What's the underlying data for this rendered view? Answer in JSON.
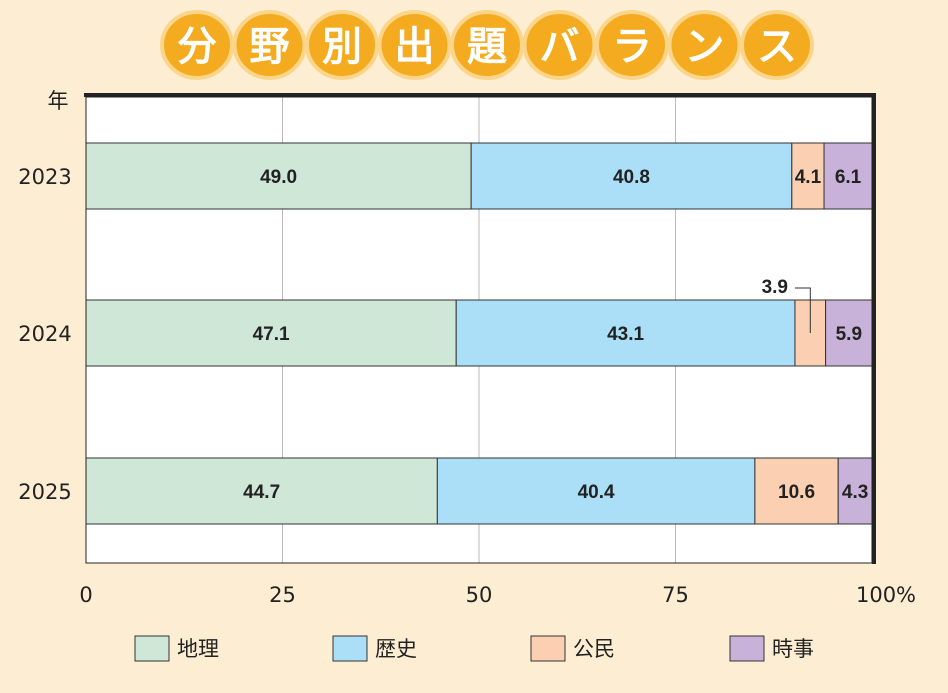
{
  "chart_data": {
    "type": "bar",
    "orientation": "horizontal-stacked",
    "title": "分野別出題バランス",
    "ylabel": "年",
    "xlabel": "",
    "categories": [
      "2023",
      "2024",
      "2025"
    ],
    "series": [
      {
        "name": "地理",
        "color": "#cfe7d6",
        "values": [
          49.0,
          47.1,
          44.7
        ],
        "labels": [
          "49.0",
          "47.1",
          "44.7"
        ]
      },
      {
        "name": "歴史",
        "color": "#aadff7",
        "values": [
          40.8,
          43.1,
          40.4
        ],
        "labels": [
          "40.8",
          "43.1",
          "40.4"
        ]
      },
      {
        "name": "公民",
        "color": "#fbd0b2",
        "values": [
          4.1,
          3.9,
          10.6
        ],
        "labels": [
          "4.1",
          "3.9",
          "10.6"
        ]
      },
      {
        "name": "時事",
        "color": "#c9b2d9",
        "values": [
          6.1,
          5.9,
          4.3
        ],
        "labels": [
          "6.1",
          "5.9",
          "4.3"
        ]
      }
    ],
    "xlim": [
      0,
      100
    ],
    "xticks": [
      "0",
      "25",
      "50",
      "75",
      "100%"
    ],
    "xtick_values": [
      0,
      25,
      50,
      75,
      100
    ],
    "grid": true,
    "legend": "bottom"
  }
}
